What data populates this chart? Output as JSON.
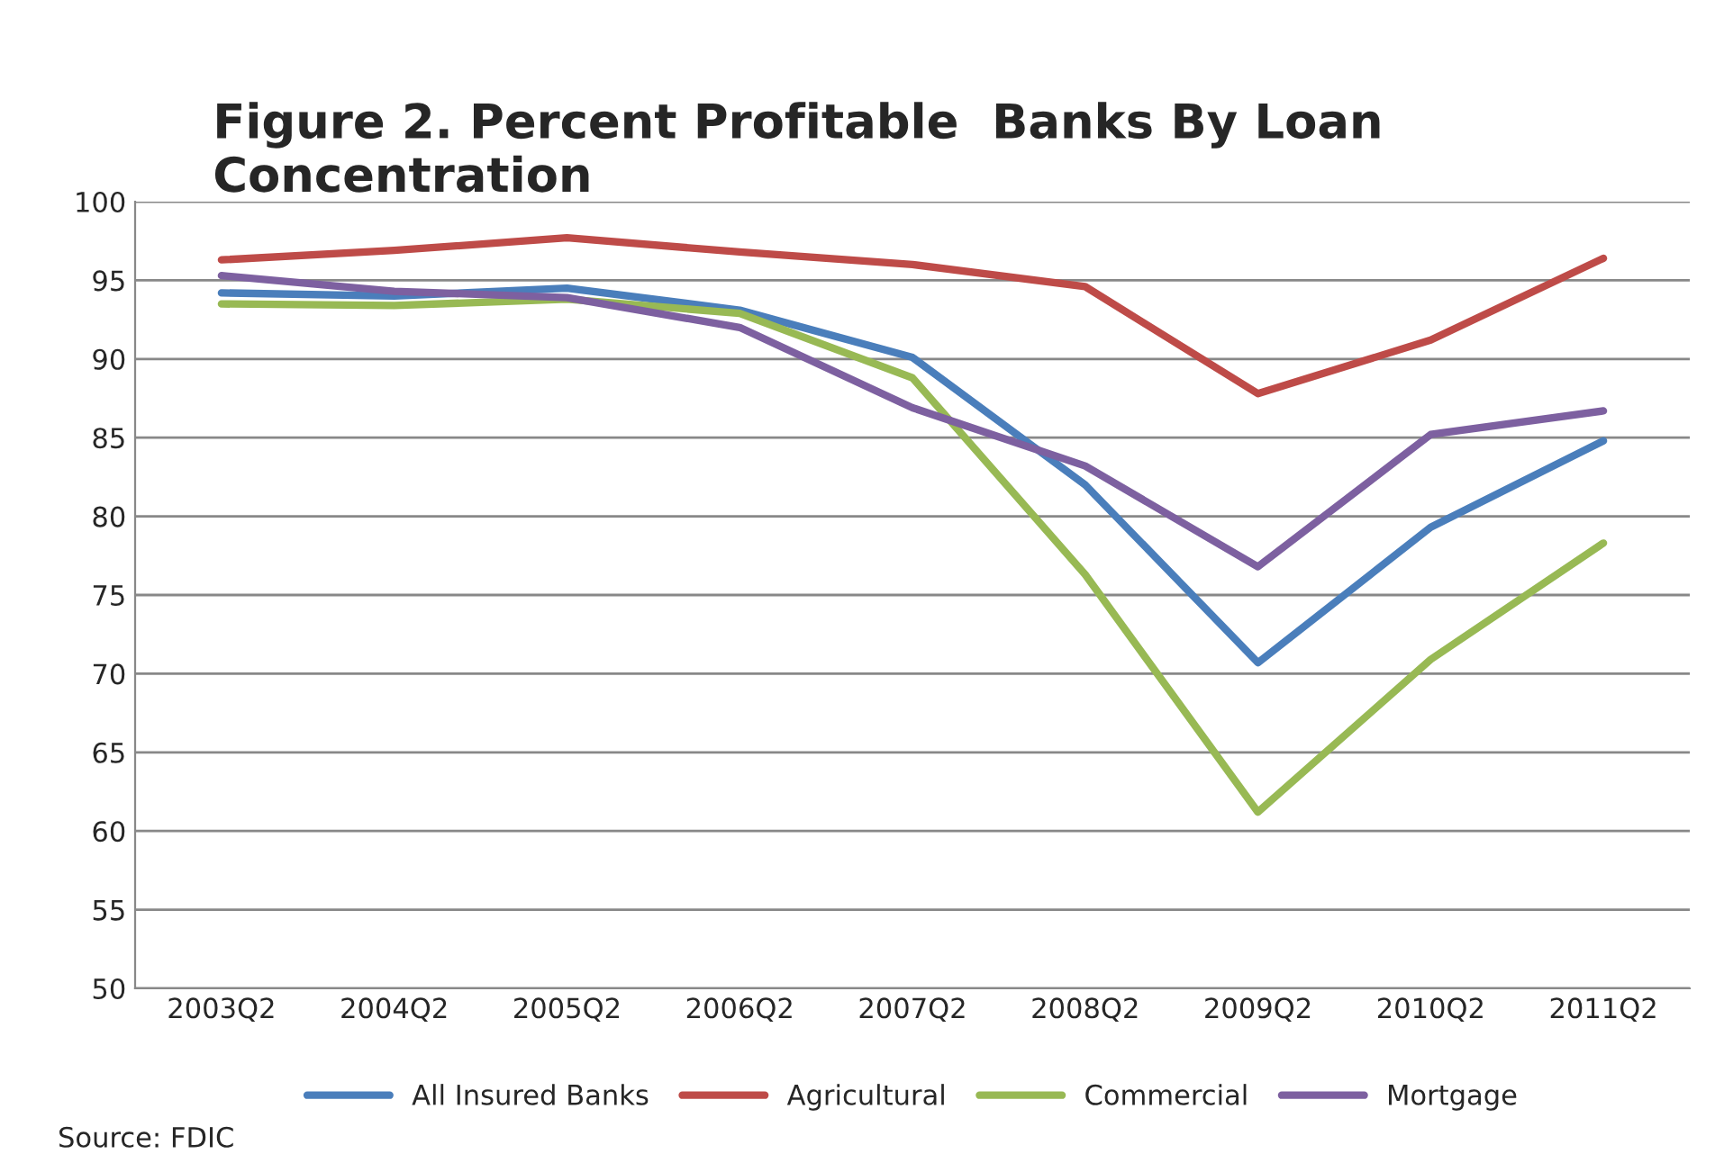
{
  "chart_data": {
    "type": "line",
    "title": "Figure 2. Percent Profitable  Banks By Loan\nConcentration",
    "categories": [
      "2003Q2",
      "2004Q2",
      "2005Q2",
      "2006Q2",
      "2007Q2",
      "2008Q2",
      "2009Q2",
      "2010Q2",
      "2011Q2"
    ],
    "series": [
      {
        "name": "All Insured Banks",
        "color": "#4a7ebb",
        "values": [
          94.2,
          94.0,
          94.5,
          93.1,
          90.1,
          82.0,
          70.7,
          79.3,
          84.8
        ]
      },
      {
        "name": "Agricultural",
        "color": "#be4b48",
        "values": [
          96.3,
          96.9,
          97.7,
          96.8,
          96.0,
          94.6,
          87.8,
          91.2,
          96.4
        ]
      },
      {
        "name": "Commercial",
        "color": "#98b954",
        "values": [
          93.5,
          93.4,
          93.8,
          92.9,
          88.8,
          76.3,
          61.2,
          70.9,
          78.3
        ]
      },
      {
        "name": "Mortgage",
        "color": "#7d60a0",
        "values": [
          95.3,
          94.3,
          93.9,
          92.0,
          86.9,
          83.2,
          76.8,
          85.2,
          86.7
        ]
      }
    ],
    "ylim": [
      50,
      100
    ],
    "yticks": [
      50,
      55,
      60,
      65,
      70,
      75,
      80,
      85,
      90,
      95,
      100
    ],
    "grid": "y",
    "legend": "bottom",
    "marker": "none",
    "line_style": "solid",
    "annotations": [
      "Source: FDIC"
    ]
  }
}
